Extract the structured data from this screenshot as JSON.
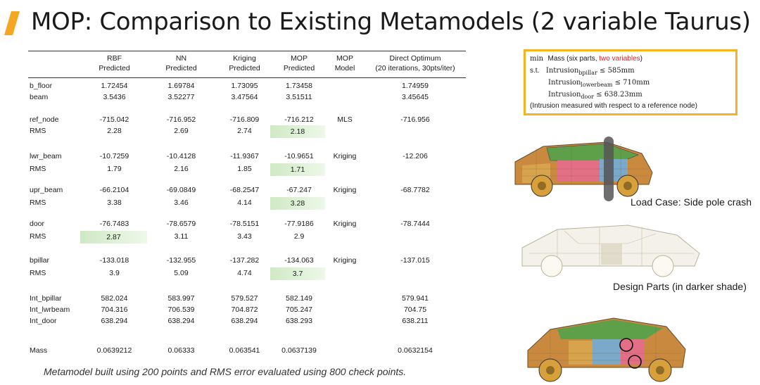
{
  "title": "MOP: Comparison to Existing Metamodels (2 variable Taurus)",
  "colors": {
    "accent": "#f5a623",
    "highlight": "#cfe9c4",
    "box_border": "#f5b324",
    "constraint_red": "#dd2222"
  },
  "table": {
    "headers": [
      {
        "l1": "",
        "l2": ""
      },
      {
        "l1": "RBF",
        "l2": "Predicted"
      },
      {
        "l1": "NN",
        "l2": "Predicted"
      },
      {
        "l1": "Kriging",
        "l2": "Predicted"
      },
      {
        "l1": "MOP",
        "l2": "Predicted"
      },
      {
        "l1": "MOP",
        "l2": "Model"
      },
      {
        "l1": "Direct Optimum",
        "l2": "(20 iterations, 30pts/iter)"
      }
    ],
    "rows": [
      {
        "label": "b_floor",
        "rbf": "1.72454",
        "nn": "1.69784",
        "kriging": "1.73095",
        "mop": "1.73458",
        "model": "",
        "direct": "1.74959"
      },
      {
        "label": "beam",
        "rbf": "3.5436",
        "nn": "3.52277",
        "kriging": "3.47564",
        "mop": "3.51511",
        "model": "",
        "direct": "3.45645"
      },
      {
        "label": "ref_node",
        "rbf": "-715.042",
        "nn": "-716.952",
        "kriging": "-716.809",
        "mop": "-716.212",
        "model": "MLS",
        "direct": "-716.956"
      },
      {
        "label": "RMS",
        "rbf": "2.28",
        "nn": "2.69",
        "kriging": "2.74",
        "mop": "2.18",
        "model": "",
        "direct": ""
      },
      {
        "label": "lwr_beam",
        "rbf": "-10.7259",
        "nn": "-10.4128",
        "kriging": "-11.9367",
        "mop": "-10.9651",
        "model": "Kriging",
        "direct": "-12.206"
      },
      {
        "label": "RMS",
        "rbf": "1.79",
        "nn": "2.16",
        "kriging": "1.85",
        "mop": "1.71",
        "model": "",
        "direct": ""
      },
      {
        "label": "upr_beam",
        "rbf": "-66.2104",
        "nn": "-69.0849",
        "kriging": "-68.2547",
        "mop": "-67.247",
        "model": "Kriging",
        "direct": "-68.7782"
      },
      {
        "label": "RMS",
        "rbf": "3.38",
        "nn": "3.46",
        "kriging": "4.14",
        "mop": "3.28",
        "model": "",
        "direct": ""
      },
      {
        "label": "door",
        "rbf": "-76.7483",
        "nn": "-78.6579",
        "kriging": "-78.5151",
        "mop": "-77.9186",
        "model": "Kriging",
        "direct": "-78.7444"
      },
      {
        "label": "RMS",
        "rbf": "2.87",
        "nn": "3.11",
        "kriging": "3.43",
        "mop": "2.9",
        "model": "",
        "direct": ""
      },
      {
        "label": "bpillar",
        "rbf": "-133.018",
        "nn": "-132.955",
        "kriging": "-137.282",
        "mop": "-134.063",
        "model": "Kriging",
        "direct": "-137.015"
      },
      {
        "label": "RMS",
        "rbf": "3.9",
        "nn": "5.09",
        "kriging": "4.74",
        "mop": "3.7",
        "model": "",
        "direct": ""
      },
      {
        "label": "Int_bpillar",
        "rbf": "582.024",
        "nn": "583.997",
        "kriging": "579.527",
        "mop": "582.149",
        "model": "",
        "direct": "579.941"
      },
      {
        "label": "Int_lwrbeam",
        "rbf": "704.316",
        "nn": "706.539",
        "kriging": "704.872",
        "mop": "705.247",
        "model": "",
        "direct": "704.75"
      },
      {
        "label": "Int_door",
        "rbf": "638.294",
        "nn": "638.294",
        "kriging": "638.294",
        "mop": "638.293",
        "model": "",
        "direct": "638.211"
      },
      {
        "label": "Mass",
        "rbf": "0.0639212",
        "nn": "0.06333",
        "kriging": "0.063541",
        "mop": "0.0637139",
        "model": "",
        "direct": "0.0632154"
      }
    ]
  },
  "footnote": "Metamodel built using 200 points and RMS error evaluated using 800 check points.",
  "formulation": {
    "min_kw": "min",
    "objective": "Mass (six parts, ",
    "objective_red": "two variables",
    "objective_end": ")",
    "st_kw": "s.t.",
    "c1_pre": "Intrusion",
    "c1_sub": "bpillar",
    "c1_post": " ≤ 585mm",
    "c2_pre": "Intrusion",
    "c2_sub": "lowerbeam",
    "c2_post": " ≤ 710mm",
    "c3_pre": "Intrusion",
    "c3_sub": "door",
    "c3_post": " ≤ 638.23mm",
    "note": "(Intrusion measured with respect to a reference node)"
  },
  "captions": {
    "load_case": "Load Case: Side pole crash",
    "design_parts": "Design Parts (in darker shade)"
  }
}
